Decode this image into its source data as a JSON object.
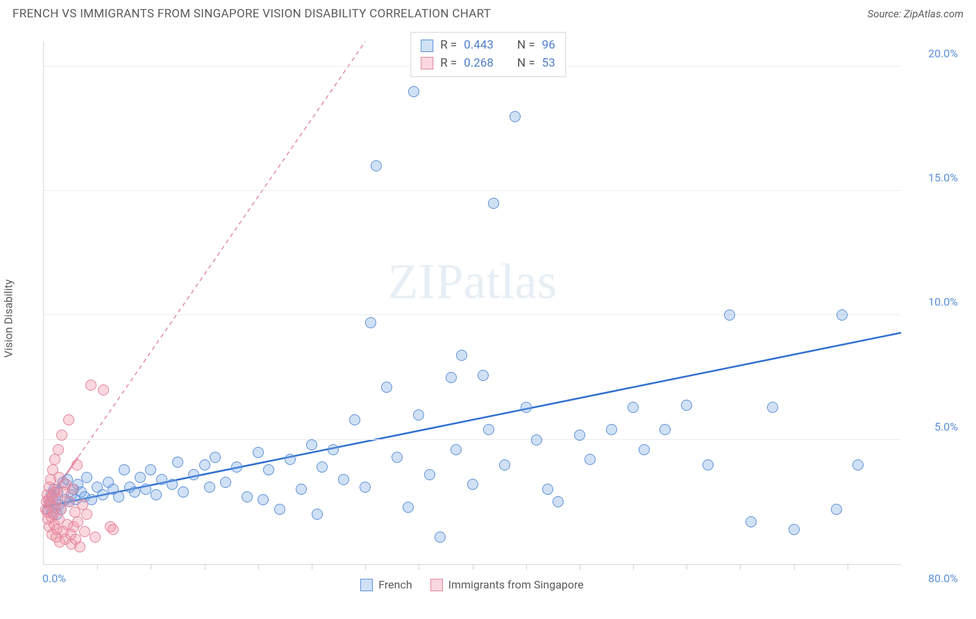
{
  "title": "FRENCH VS IMMIGRANTS FROM SINGAPORE VISION DISABILITY CORRELATION CHART",
  "source_label": "Source: ZipAtlas.com",
  "ylabel": "Vision Disability",
  "watermark": "ZIPatlas",
  "chart": {
    "type": "scatter",
    "background_color": "#ffffff",
    "grid_color": "#ececec",
    "axis_color": "#d8d8d8",
    "tick_label_color": "#5b8fd6",
    "text_color": "#5a5a5a",
    "title_fontsize": 17,
    "label_fontsize": 16,
    "marker_radius": 8,
    "marker_stroke_width": 1,
    "xlim": [
      0,
      80
    ],
    "ylim": [
      0,
      21
    ],
    "x_origin_label": "0.0%",
    "x_max_label": "80.0%",
    "x_tick_step": 5,
    "y_ticks": [
      {
        "v": 5,
        "label": "5.0%"
      },
      {
        "v": 10,
        "label": "10.0%"
      },
      {
        "v": 15,
        "label": "15.0%"
      },
      {
        "v": 20,
        "label": "20.0%"
      }
    ],
    "series": [
      {
        "key": "french",
        "label": "French",
        "fill": "rgba(120,170,230,0.35)",
        "stroke": "#5b8fd6",
        "trend": {
          "stroke": "#2f6fd0",
          "width": 2.5,
          "dash": "none",
          "x1": 0,
          "y1": 2.3,
          "x2": 80,
          "y2": 9.3
        },
        "points": [
          [
            0.4,
            2.2
          ],
          [
            0.6,
            2.5
          ],
          [
            0.7,
            2.8
          ],
          [
            0.8,
            2.1
          ],
          [
            0.9,
            2.6
          ],
          [
            1.0,
            3.0
          ],
          [
            1.1,
            2.3
          ],
          [
            1.2,
            2.0
          ],
          [
            1.3,
            2.9
          ],
          [
            1.4,
            2.4
          ],
          [
            1.6,
            2.2
          ],
          [
            1.8,
            3.3
          ],
          [
            2.0,
            2.6
          ],
          [
            2.2,
            3.4
          ],
          [
            2.4,
            2.5
          ],
          [
            2.6,
            2.8
          ],
          [
            2.8,
            3.0
          ],
          [
            3.0,
            2.6
          ],
          [
            3.2,
            3.2
          ],
          [
            3.5,
            2.9
          ],
          [
            3.8,
            2.7
          ],
          [
            4.0,
            3.5
          ],
          [
            4.5,
            2.6
          ],
          [
            5.0,
            3.1
          ],
          [
            5.5,
            2.8
          ],
          [
            6.0,
            3.3
          ],
          [
            6.5,
            3.0
          ],
          [
            7.0,
            2.7
          ],
          [
            7.5,
            3.8
          ],
          [
            8.0,
            3.1
          ],
          [
            8.5,
            2.9
          ],
          [
            9.0,
            3.5
          ],
          [
            9.5,
            3.0
          ],
          [
            10.0,
            3.8
          ],
          [
            10.5,
            2.8
          ],
          [
            11.0,
            3.4
          ],
          [
            12.0,
            3.2
          ],
          [
            12.5,
            4.1
          ],
          [
            13.0,
            2.9
          ],
          [
            14.0,
            3.6
          ],
          [
            15.0,
            4.0
          ],
          [
            15.5,
            3.1
          ],
          [
            16.0,
            4.3
          ],
          [
            17.0,
            3.3
          ],
          [
            18.0,
            3.9
          ],
          [
            19.0,
            2.7
          ],
          [
            20.0,
            4.5
          ],
          [
            20.5,
            2.6
          ],
          [
            21.0,
            3.8
          ],
          [
            22.0,
            2.2
          ],
          [
            23.0,
            4.2
          ],
          [
            24.0,
            3.0
          ],
          [
            25.0,
            4.8
          ],
          [
            25.5,
            2.0
          ],
          [
            26.0,
            3.9
          ],
          [
            27.0,
            4.6
          ],
          [
            28.0,
            3.4
          ],
          [
            29.0,
            5.8
          ],
          [
            30.0,
            3.1
          ],
          [
            30.5,
            9.7
          ],
          [
            31.0,
            16.0
          ],
          [
            32.0,
            7.1
          ],
          [
            33.0,
            4.3
          ],
          [
            34.0,
            2.3
          ],
          [
            34.5,
            19.0
          ],
          [
            35.0,
            6.0
          ],
          [
            36.0,
            3.6
          ],
          [
            37.0,
            1.1
          ],
          [
            38.0,
            7.5
          ],
          [
            38.5,
            4.6
          ],
          [
            39.0,
            8.4
          ],
          [
            40.0,
            3.2
          ],
          [
            41.0,
            7.6
          ],
          [
            41.5,
            5.4
          ],
          [
            42.0,
            14.5
          ],
          [
            43.0,
            4.0
          ],
          [
            44.0,
            18.0
          ],
          [
            45.0,
            6.3
          ],
          [
            46.0,
            5.0
          ],
          [
            47.0,
            3.0
          ],
          [
            48.0,
            2.5
          ],
          [
            50.0,
            5.2
          ],
          [
            51.0,
            4.2
          ],
          [
            53.0,
            5.4
          ],
          [
            55.0,
            6.3
          ],
          [
            56.0,
            4.6
          ],
          [
            58.0,
            5.4
          ],
          [
            60.0,
            6.4
          ],
          [
            62.0,
            4.0
          ],
          [
            64.0,
            10.0
          ],
          [
            66.0,
            1.7
          ],
          [
            68.0,
            6.3
          ],
          [
            70.0,
            1.4
          ],
          [
            74.0,
            2.2
          ],
          [
            74.5,
            10.0
          ],
          [
            76.0,
            4.0
          ]
        ]
      },
      {
        "key": "singapore",
        "label": "Immigrants from Singapore",
        "fill": "rgba(240,140,160,0.35)",
        "stroke": "#e0859b",
        "trend": {
          "stroke": "#e58aa0",
          "width": 1.5,
          "dash": "6 5",
          "x1": 0,
          "y1": 2.3,
          "x2": 30,
          "y2": 21
        },
        "trend_solid_end": {
          "x1": 0,
          "y1": 2.3,
          "x2": 3.2,
          "y2": 4.3
        },
        "points": [
          [
            0.2,
            2.2
          ],
          [
            0.25,
            2.5
          ],
          [
            0.3,
            2.1
          ],
          [
            0.35,
            2.8
          ],
          [
            0.4,
            1.8
          ],
          [
            0.45,
            2.6
          ],
          [
            0.5,
            3.1
          ],
          [
            0.55,
            1.5
          ],
          [
            0.6,
            2.4
          ],
          [
            0.65,
            3.4
          ],
          [
            0.7,
            1.9
          ],
          [
            0.75,
            2.7
          ],
          [
            0.8,
            1.2
          ],
          [
            0.85,
            3.8
          ],
          [
            0.9,
            2.0
          ],
          [
            0.95,
            2.9
          ],
          [
            1.0,
            1.6
          ],
          [
            1.05,
            4.2
          ],
          [
            1.1,
            2.3
          ],
          [
            1.15,
            1.1
          ],
          [
            1.2,
            3.0
          ],
          [
            1.25,
            1.4
          ],
          [
            1.3,
            2.6
          ],
          [
            1.35,
            4.6
          ],
          [
            1.4,
            1.8
          ],
          [
            1.45,
            3.5
          ],
          [
            1.5,
            0.9
          ],
          [
            1.6,
            2.2
          ],
          [
            1.7,
            5.2
          ],
          [
            1.8,
            1.3
          ],
          [
            1.9,
            2.9
          ],
          [
            2.0,
            1.0
          ],
          [
            2.1,
            3.2
          ],
          [
            2.2,
            1.6
          ],
          [
            2.3,
            5.8
          ],
          [
            2.4,
            2.5
          ],
          [
            2.5,
            1.2
          ],
          [
            2.6,
            0.8
          ],
          [
            2.7,
            3.0
          ],
          [
            2.8,
            1.5
          ],
          [
            2.9,
            2.1
          ],
          [
            3.0,
            1.0
          ],
          [
            3.1,
            4.0
          ],
          [
            3.2,
            1.7
          ],
          [
            3.4,
            0.7
          ],
          [
            3.6,
            2.4
          ],
          [
            3.8,
            1.3
          ],
          [
            4.0,
            2.0
          ],
          [
            4.4,
            7.2
          ],
          [
            4.8,
            1.1
          ],
          [
            5.6,
            7.0
          ],
          [
            6.2,
            1.5
          ],
          [
            6.5,
            1.4
          ]
        ]
      }
    ],
    "stats": [
      {
        "series": "french",
        "r_label": "R =",
        "r": "0.443",
        "n_label": "N =",
        "n": "96"
      },
      {
        "series": "singapore",
        "r_label": "R =",
        "r": "0.268",
        "n_label": "N =",
        "n": "53"
      }
    ]
  }
}
